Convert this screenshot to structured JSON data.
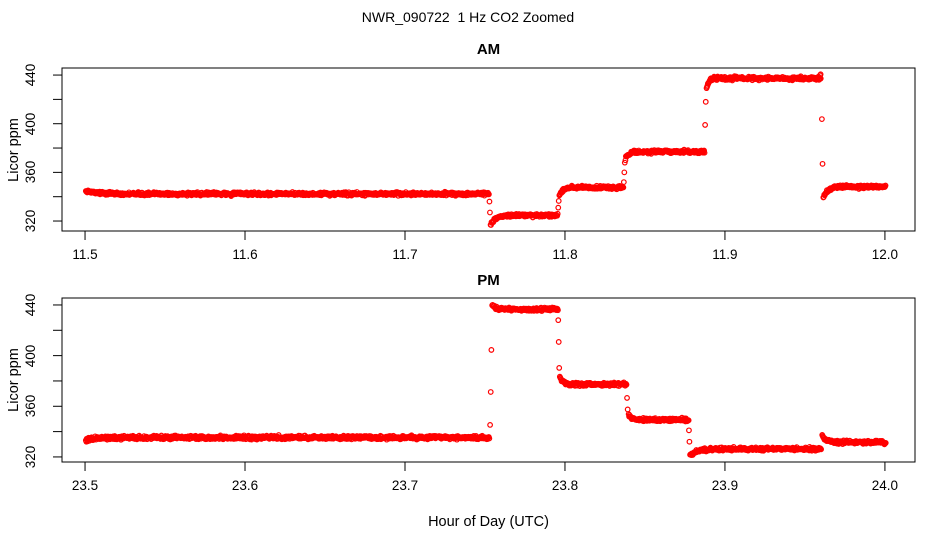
{
  "title": "NWR_090722  1 Hz CO2 Zoomed",
  "xlabel": "Hour of Day (UTC)",
  "point_color": "#ff0000",
  "axis_color": "#000000",
  "chart_data": [
    {
      "type": "scatter",
      "panel_title": "AM",
      "ylabel": "Licor ppm",
      "marker": "open-circle",
      "sample_rate_hz": 1,
      "xlim": [
        11.4856,
        12.0188
      ],
      "ylim": [
        311.8,
        445.8
      ],
      "xticks": [
        {
          "v": 11.5,
          "label": "11.5"
        },
        {
          "v": 11.6,
          "label": "11.6"
        },
        {
          "v": 11.7,
          "label": "11.7"
        },
        {
          "v": 11.8,
          "label": "11.8"
        },
        {
          "v": 11.9,
          "label": "11.9"
        },
        {
          "v": 12.0,
          "label": "12.0"
        }
      ],
      "yticks": [
        {
          "v": 320,
          "label": "320"
        },
        {
          "v": 340,
          "label": ""
        },
        {
          "v": 360,
          "label": "360"
        },
        {
          "v": 380,
          "label": ""
        },
        {
          "v": 400,
          "label": "400"
        },
        {
          "v": 420,
          "label": ""
        },
        {
          "v": 440,
          "label": "440"
        }
      ],
      "segments": [
        {
          "start": 11.5005,
          "end": 11.7525,
          "ppm": 342.3,
          "approach_from": 344.5,
          "tau": 0.01,
          "noise": 0.8
        },
        {
          "start": 11.7535,
          "end": 11.7955,
          "ppm": 324.6,
          "approach_from": 316.5,
          "tau": 0.0025,
          "noise": 0.8
        },
        {
          "start": 11.7965,
          "end": 11.8365,
          "ppm": 347.6,
          "approach_from": 341.0,
          "tau": 0.002,
          "noise": 0.8
        },
        {
          "start": 11.8378,
          "end": 11.8872,
          "ppm": 377.0,
          "approach_from": 371.0,
          "tau": 0.0018,
          "noise": 0.8
        },
        {
          "start": 11.8885,
          "end": 11.96,
          "ppm": 437.3,
          "approach_from": 429.0,
          "tau": 0.0015,
          "noise": 0.8
        },
        {
          "start": 11.9615,
          "end": 12.0005,
          "ppm": 348.2,
          "approach_from": 339.0,
          "tau": 0.0028,
          "noise": 0.8
        }
      ],
      "transition_points": [
        [
          11.7528,
          336.0
        ],
        [
          11.7531,
          327.0
        ],
        [
          11.7958,
          331.0
        ],
        [
          11.7961,
          336.5
        ],
        [
          11.8368,
          352.0
        ],
        [
          11.8371,
          360.0
        ],
        [
          11.8374,
          368.0
        ],
        [
          11.8876,
          399.0
        ],
        [
          11.888,
          418.0
        ],
        [
          11.9594,
          439.8
        ],
        [
          11.9598,
          440.6
        ],
        [
          11.9606,
          403.8
        ],
        [
          11.961,
          367.0
        ]
      ]
    },
    {
      "type": "scatter",
      "panel_title": "PM",
      "ylabel": "Licor ppm",
      "marker": "open-circle",
      "sample_rate_hz": 1,
      "xlim": [
        23.4856,
        24.0188
      ],
      "ylim": [
        316.0,
        445.5
      ],
      "xticks": [
        {
          "v": 23.5,
          "label": "23.5"
        },
        {
          "v": 23.6,
          "label": "23.6"
        },
        {
          "v": 23.7,
          "label": "23.7"
        },
        {
          "v": 23.8,
          "label": "23.8"
        },
        {
          "v": 23.9,
          "label": "23.9"
        },
        {
          "v": 24.0,
          "label": "24.0"
        }
      ],
      "yticks": [
        {
          "v": 320,
          "label": "320"
        },
        {
          "v": 340,
          "label": ""
        },
        {
          "v": 360,
          "label": "360"
        },
        {
          "v": 380,
          "label": ""
        },
        {
          "v": 400,
          "label": "400"
        },
        {
          "v": 420,
          "label": ""
        },
        {
          "v": 440,
          "label": "440"
        }
      ],
      "segments": [
        {
          "start": 23.5005,
          "end": 23.7528,
          "ppm": 335.4,
          "approach_from": 333.0,
          "tau": 0.006,
          "noise": 0.9
        },
        {
          "start": 23.7545,
          "end": 23.7955,
          "ppm": 436.6,
          "approach_from": 440.5,
          "tau": 0.0018,
          "noise": 0.8
        },
        {
          "start": 23.7968,
          "end": 23.8385,
          "ppm": 377.3,
          "approach_from": 383.0,
          "tau": 0.0018,
          "noise": 0.8
        },
        {
          "start": 23.8398,
          "end": 23.8772,
          "ppm": 349.3,
          "approach_from": 353.5,
          "tau": 0.0018,
          "noise": 0.8
        },
        {
          "start": 23.8782,
          "end": 23.9598,
          "ppm": 326.3,
          "approach_from": 320.5,
          "tau": 0.004,
          "noise": 0.8
        },
        {
          "start": 23.9608,
          "end": 24.0005,
          "ppm": 331.6,
          "approach_from": 336.8,
          "tau": 0.0025,
          "noise": 0.8
        }
      ],
      "transition_points": [
        [
          23.7532,
          345.3
        ],
        [
          23.7536,
          371.3
        ],
        [
          23.754,
          404.5
        ],
        [
          23.7958,
          428.0
        ],
        [
          23.7961,
          410.8
        ],
        [
          23.7964,
          390.3
        ],
        [
          23.8388,
          366.6
        ],
        [
          23.8392,
          357.5
        ],
        [
          23.8775,
          341.0
        ],
        [
          23.8778,
          332.0
        ],
        [
          23.9601,
          326.0
        ]
      ]
    }
  ]
}
